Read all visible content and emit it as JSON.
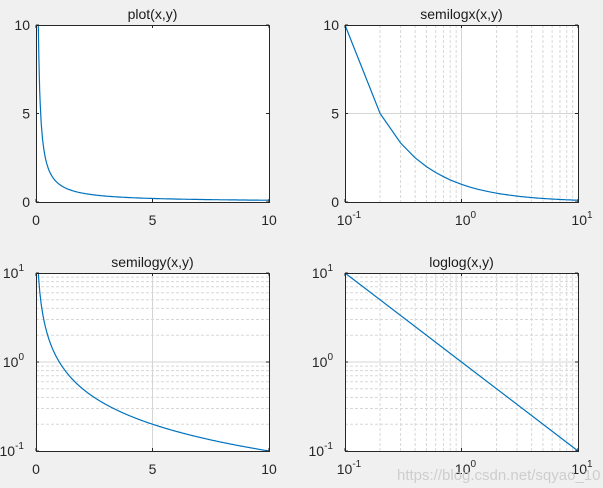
{
  "figure": {
    "background": "#f0f0f0",
    "line_color": "#0072bd",
    "watermark": "https://blog.csdn.net/sqyao_10"
  },
  "chart_data": [
    {
      "type": "line",
      "title": "plot(x,y)",
      "function": "y = 1/x",
      "xscale": "linear",
      "yscale": "linear",
      "xlim": [
        0,
        10
      ],
      "ylim": [
        0,
        10
      ],
      "xticks": [
        "0",
        "5",
        "10"
      ],
      "yticks": [
        "0",
        "5",
        "10"
      ],
      "grid": false,
      "x": [
        0.1,
        0.2,
        0.3,
        0.5,
        1,
        2,
        3,
        5,
        7,
        10
      ],
      "y": [
        10,
        5,
        3.33,
        2,
        1,
        0.5,
        0.33,
        0.2,
        0.14,
        0.1
      ]
    },
    {
      "type": "line",
      "title": "semilogx(x,y)",
      "xscale": "log",
      "yscale": "linear",
      "xlim": [
        0.1,
        10
      ],
      "ylim": [
        0,
        10
      ],
      "xticks": [
        "10^-1",
        "10^0",
        "10^1"
      ],
      "yticks": [
        "0",
        "5",
        "10"
      ],
      "grid": true,
      "x": [
        0.1,
        0.2,
        0.3,
        0.5,
        1,
        2,
        3,
        5,
        7,
        10
      ],
      "y": [
        10,
        5,
        3.33,
        2,
        1,
        0.5,
        0.33,
        0.2,
        0.14,
        0.1
      ]
    },
    {
      "type": "line",
      "title": "semilogy(x,y)",
      "xscale": "linear",
      "yscale": "log",
      "xlim": [
        0,
        10
      ],
      "ylim": [
        0.1,
        10
      ],
      "xticks": [
        "0",
        "5",
        "10"
      ],
      "yticks": [
        "10^-1",
        "10^0",
        "10^1"
      ],
      "grid": true,
      "x": [
        0.1,
        0.2,
        0.3,
        0.5,
        1,
        2,
        3,
        5,
        7,
        10
      ],
      "y": [
        10,
        5,
        3.33,
        2,
        1,
        0.5,
        0.33,
        0.2,
        0.14,
        0.1
      ]
    },
    {
      "type": "line",
      "title": "loglog(x,y)",
      "xscale": "log",
      "yscale": "log",
      "xlim": [
        0.1,
        10
      ],
      "ylim": [
        0.1,
        10
      ],
      "xticks": [
        "10^-1",
        "10^0",
        "10^1"
      ],
      "yticks": [
        "10^-1",
        "10^0",
        "10^1"
      ],
      "grid": true,
      "x": [
        0.1,
        1,
        10
      ],
      "y": [
        10,
        1,
        0.1
      ]
    }
  ],
  "labels": {
    "t0": "plot(x,y)",
    "t1": "semilogx(x,y)",
    "t2": "semilogy(x,y)",
    "t3": "loglog(x,y)",
    "lin0": "0",
    "lin5": "5",
    "lin10": "10",
    "base": "10",
    "em1": "-1",
    "e0": "0",
    "e1": "1"
  }
}
